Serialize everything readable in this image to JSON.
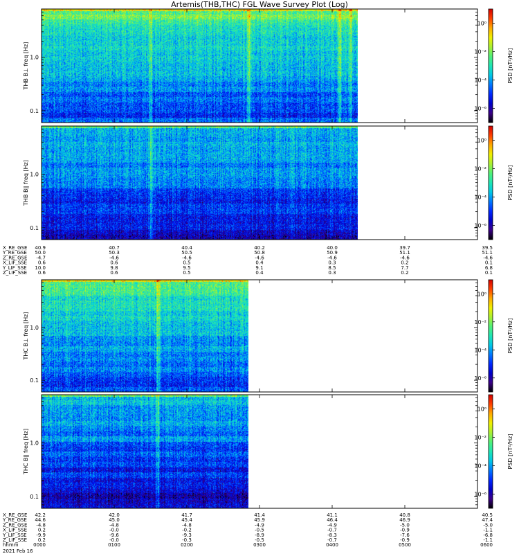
{
  "title": "Artemis(THB,THC) FGL Wave Survey Plot (Log)",
  "colors": {
    "colormap": [
      "#000000",
      "#3a0088",
      "#0000c8",
      "#0028ff",
      "#0078ff",
      "#00c8e6",
      "#1ee6b4",
      "#50f078",
      "#aaf032",
      "#f0f000",
      "#ffaa00",
      "#ff4000",
      "#d20000"
    ]
  },
  "chart_data": [
    {
      "type": "heatmap",
      "name": "THB B⊥",
      "ylabel": "THB B⊥ freq [Hz]",
      "colorbar_label": "PSD [nT²/Hz]",
      "ytick_labels": [
        "1.0",
        "0.1"
      ],
      "ylim": [
        0.06,
        8.0
      ],
      "yscale": "log",
      "colorbar_ticks": [
        "10⁰",
        "10⁻²",
        "10⁻⁴",
        "10⁻⁶"
      ],
      "colorbar_range": [
        1e-07,
        10
      ],
      "x_range": [
        0,
        6
      ],
      "data_end": 4.35,
      "bright_bands_at": [
        1.5,
        2.85,
        4.1,
        4.25
      ],
      "psd_log10_by_freq": [
        [
          0.08,
          -4.8
        ],
        [
          0.3,
          -4.2
        ],
        [
          1.0,
          -3.6
        ],
        [
          3.0,
          -3.1
        ],
        [
          7.0,
          -2.2
        ]
      ]
    },
    {
      "type": "heatmap",
      "name": "THB B∥",
      "ylabel": "THB B∥ freq [Hz]",
      "colorbar_label": "PSD [nT²/Hz]",
      "ytick_labels": [
        "1.0",
        "0.1"
      ],
      "ylim": [
        0.06,
        8.0
      ],
      "yscale": "log",
      "colorbar_ticks": [
        "10⁰",
        "10⁻²",
        "10⁻⁴",
        "10⁻⁶"
      ],
      "colorbar_range": [
        1e-07,
        10
      ],
      "x_range": [
        0,
        6
      ],
      "data_end": 4.35,
      "bright_bands_at": [
        1.5
      ],
      "psd_log10_by_freq": [
        [
          0.08,
          -5.6
        ],
        [
          0.3,
          -5.0
        ],
        [
          1.0,
          -4.4
        ],
        [
          3.0,
          -4.0
        ],
        [
          7.0,
          -3.4
        ]
      ]
    },
    {
      "type": "heatmap",
      "name": "THC B⊥",
      "ylabel": "THC B⊥ freq [Hz]",
      "colorbar_label": "PSD [nT²/Hz]",
      "ytick_labels": [
        "1.0",
        "0.1"
      ],
      "ylim": [
        0.06,
        8.0
      ],
      "yscale": "log",
      "colorbar_ticks": [
        "10⁰",
        "10⁻²",
        "10⁻⁴",
        "10⁻⁶"
      ],
      "colorbar_range": [
        1e-07,
        10
      ],
      "x_range": [
        0,
        6
      ],
      "data_end": 2.85,
      "bright_bands_at": [
        1.6
      ],
      "psd_log10_by_freq": [
        [
          0.08,
          -4.8
        ],
        [
          0.3,
          -4.1
        ],
        [
          1.0,
          -3.6
        ],
        [
          3.0,
          -3.1
        ],
        [
          7.0,
          -2.3
        ]
      ]
    },
    {
      "type": "heatmap",
      "name": "THC B∥",
      "ylabel": "THC B∥ freq [Hz]",
      "colorbar_label": "PSD [nT²/Hz]",
      "ytick_labels": [
        "1.0",
        "0.1"
      ],
      "ylim": [
        0.06,
        8.0
      ],
      "yscale": "log",
      "colorbar_ticks": [
        "10⁰",
        "10⁻²",
        "10⁻⁴",
        "10⁻⁶"
      ],
      "colorbar_range": [
        1e-07,
        10
      ],
      "x_range": [
        0,
        6
      ],
      "data_end": 2.85,
      "bright_bands_at": [
        1.6
      ],
      "psd_log10_by_freq": [
        [
          0.08,
          -5.8
        ],
        [
          0.3,
          -5.1
        ],
        [
          1.0,
          -4.4
        ],
        [
          3.0,
          -4.0
        ],
        [
          7.0,
          -3.5
        ]
      ]
    }
  ],
  "ephemeris_thb": {
    "rows": [
      {
        "label": "X_RE_GSE",
        "values": [
          "40.9",
          "40.7",
          "40.4",
          "40.2",
          "40.0",
          "39.7",
          "39.5"
        ]
      },
      {
        "label": "Y_RE_GSE",
        "values": [
          "50.0",
          "50.3",
          "50.5",
          "50.8",
          "50.9",
          "51.1",
          "51.1"
        ]
      },
      {
        "label": "Z_RE_GSE",
        "values": [
          "-4.7",
          "-4.6",
          "-4.6",
          "-4.6",
          "-4.6",
          "-4.6",
          "-4.6"
        ]
      },
      {
        "label": "X_LIF_SSE",
        "values": [
          "0.6",
          "0.6",
          "0.5",
          "0.4",
          "0.3",
          "0.2",
          "0.1"
        ]
      },
      {
        "label": "Y_LIF_SSE",
        "values": [
          "10.0",
          "9.8",
          "9.5",
          "9.1",
          "8.5",
          "7.7",
          "6.8"
        ]
      },
      {
        "label": "Z_LIF_SSE",
        "values": [
          "0.6",
          "0.6",
          "0.5",
          "0.4",
          "0.3",
          "0.2",
          "0.1"
        ]
      }
    ]
  },
  "ephemeris_thc": {
    "rows": [
      {
        "label": "X_RE_GSE",
        "values": [
          "42.2",
          "42.0",
          "41.7",
          "41.4",
          "41.1",
          "40.8",
          "40.5"
        ]
      },
      {
        "label": "Y_RE_GSE",
        "values": [
          "44.6",
          "45.0",
          "45.4",
          "45.9",
          "46.4",
          "46.9",
          "47.4"
        ]
      },
      {
        "label": "Z_RE_GSE",
        "values": [
          "-4.8",
          "-4.8",
          "-4.8",
          "-4.9",
          "-4.9",
          "-5.0",
          "-5.0"
        ]
      },
      {
        "label": "X_LIF_SSE",
        "values": [
          "0.2",
          "-0.0",
          "-0.2",
          "-0.5",
          "-0.7",
          "-0.9",
          "-1.1"
        ]
      },
      {
        "label": "Y_LIF_SSE",
        "values": [
          "-9.9",
          "-9.6",
          "-9.3",
          "-8.9",
          "-8.3",
          "-7.6",
          "-6.8"
        ]
      },
      {
        "label": "Z_LIF_SSE",
        "values": [
          "0.2",
          "-0.0",
          "-0.3",
          "-0.5",
          "-0.7",
          "-0.9",
          "-1.1"
        ]
      },
      {
        "label": "hhmm",
        "values": [
          "0000",
          "0100",
          "0200",
          "0300",
          "0400",
          "0500",
          "0600"
        ]
      }
    ],
    "date_label": "2021 Feb 16"
  }
}
